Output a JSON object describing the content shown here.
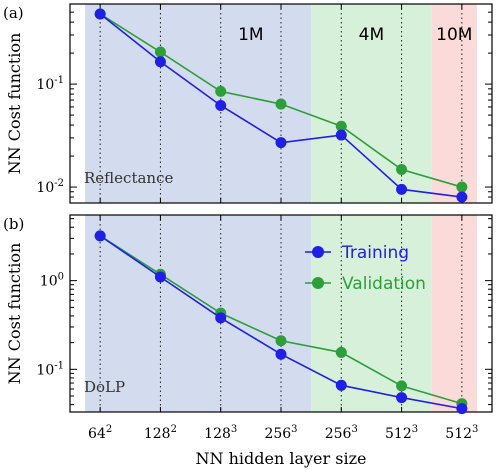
{
  "colors": {
    "training": "#1f1fe6",
    "validation": "#2e9e3a",
    "region_1M": "#d3dbef",
    "region_4M": "#d7f0da",
    "region_10M": "#fbdada"
  },
  "chart_data": [
    {
      "type": "line",
      "panel_label": "(a)",
      "panel_name": "Reflectance",
      "ylabel": "NN Cost function",
      "xlabel": "",
      "yscale": "log",
      "ylim": [
        0.007,
        0.6
      ],
      "yticks": [
        {
          "value": 0.1,
          "base": "10",
          "exp": "-1"
        },
        {
          "value": 0.01,
          "base": "10",
          "exp": "-2"
        }
      ],
      "categories": [
        {
          "base": "64",
          "exp": "2"
        },
        {
          "base": "128",
          "exp": "2"
        },
        {
          "base": "128",
          "exp": "3"
        },
        {
          "base": "256",
          "exp": "3"
        },
        {
          "base": "256",
          "exp": "3"
        },
        {
          "base": "512",
          "exp": "3"
        },
        {
          "base": "512",
          "exp": "3"
        }
      ],
      "regions": [
        {
          "label": "1M",
          "from": -0.25,
          "to": 3.5,
          "color_key": "region_1M"
        },
        {
          "label": "4M",
          "from": 3.5,
          "to": 5.5,
          "color_key": "region_4M"
        },
        {
          "label": "10M",
          "from": 5.5,
          "to": 6.25,
          "color_key": "region_10M"
        }
      ],
      "series": [
        {
          "name": "Training",
          "color_key": "training",
          "values": [
            0.48,
            0.165,
            0.062,
            0.027,
            0.032,
            0.0095,
            0.008
          ]
        },
        {
          "name": "Validation",
          "color_key": "validation",
          "values": [
            0.48,
            0.205,
            0.085,
            0.064,
            0.039,
            0.0148,
            0.01
          ]
        }
      ],
      "legend": null
    },
    {
      "type": "line",
      "panel_label": "(b)",
      "panel_name": "DoLP",
      "ylabel": "NN Cost function",
      "xlabel": "NN hidden layer size",
      "yscale": "log",
      "ylim": [
        0.033,
        5.5
      ],
      "yticks": [
        {
          "value": 1,
          "base": "10",
          "exp": "0"
        },
        {
          "value": 0.1,
          "base": "10",
          "exp": "-1"
        }
      ],
      "categories": [
        {
          "base": "64",
          "exp": "2"
        },
        {
          "base": "128",
          "exp": "2"
        },
        {
          "base": "128",
          "exp": "3"
        },
        {
          "base": "256",
          "exp": "3"
        },
        {
          "base": "256",
          "exp": "3"
        },
        {
          "base": "512",
          "exp": "3"
        },
        {
          "base": "512",
          "exp": "3"
        }
      ],
      "regions": [
        {
          "label": "",
          "from": -0.25,
          "to": 3.5,
          "color_key": "region_1M"
        },
        {
          "label": "",
          "from": 3.5,
          "to": 5.5,
          "color_key": "region_4M"
        },
        {
          "label": "",
          "from": 5.5,
          "to": 6.25,
          "color_key": "region_10M"
        }
      ],
      "series": [
        {
          "name": "Training",
          "color_key": "training",
          "values": [
            3.2,
            1.1,
            0.38,
            0.148,
            0.066,
            0.048,
            0.036
          ]
        },
        {
          "name": "Validation",
          "color_key": "validation",
          "values": [
            3.2,
            1.18,
            0.43,
            0.21,
            0.155,
            0.065,
            0.041
          ]
        }
      ],
      "legend": {
        "position": "right",
        "entries": [
          "Training",
          "Validation"
        ]
      }
    }
  ]
}
